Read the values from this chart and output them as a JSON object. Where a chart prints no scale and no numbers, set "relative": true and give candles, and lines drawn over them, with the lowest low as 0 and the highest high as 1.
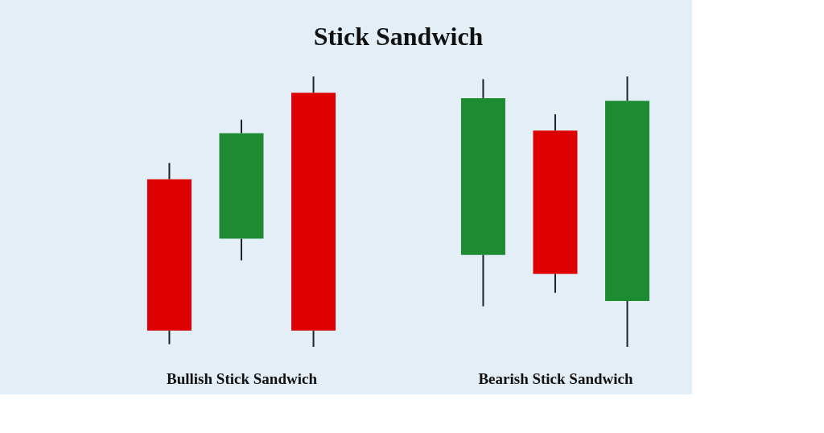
{
  "chart_data": [
    {
      "type": "candlestick",
      "title": "Stick Sandwich",
      "xlabel": "Bullish Stick Sandwich",
      "relative": true,
      "categories": [
        null,
        null,
        null
      ],
      "ohlc": [
        [
          0.62,
          0.68,
          0.01,
          0.06
        ],
        [
          0.4,
          0.84,
          0.32,
          0.79
        ],
        [
          0.94,
          1,
          0,
          0.06
        ]
      ],
      "colors": [
        "#dd0000",
        "#1e8a32",
        "#dd0000"
      ]
    },
    {
      "type": "candlestick",
      "xlabel": "Bearish Stick Sandwich",
      "relative": true,
      "categories": [
        null,
        null,
        null
      ],
      "ohlc": [
        [
          0.34,
          0.99,
          0.15,
          0.92
        ],
        [
          0.8,
          0.86,
          0.2,
          0.27
        ],
        [
          0.17,
          1,
          0,
          0.91
        ]
      ],
      "colors": [
        "#1e8a32",
        "#dd0000",
        "#1e8a32"
      ]
    }
  ]
}
